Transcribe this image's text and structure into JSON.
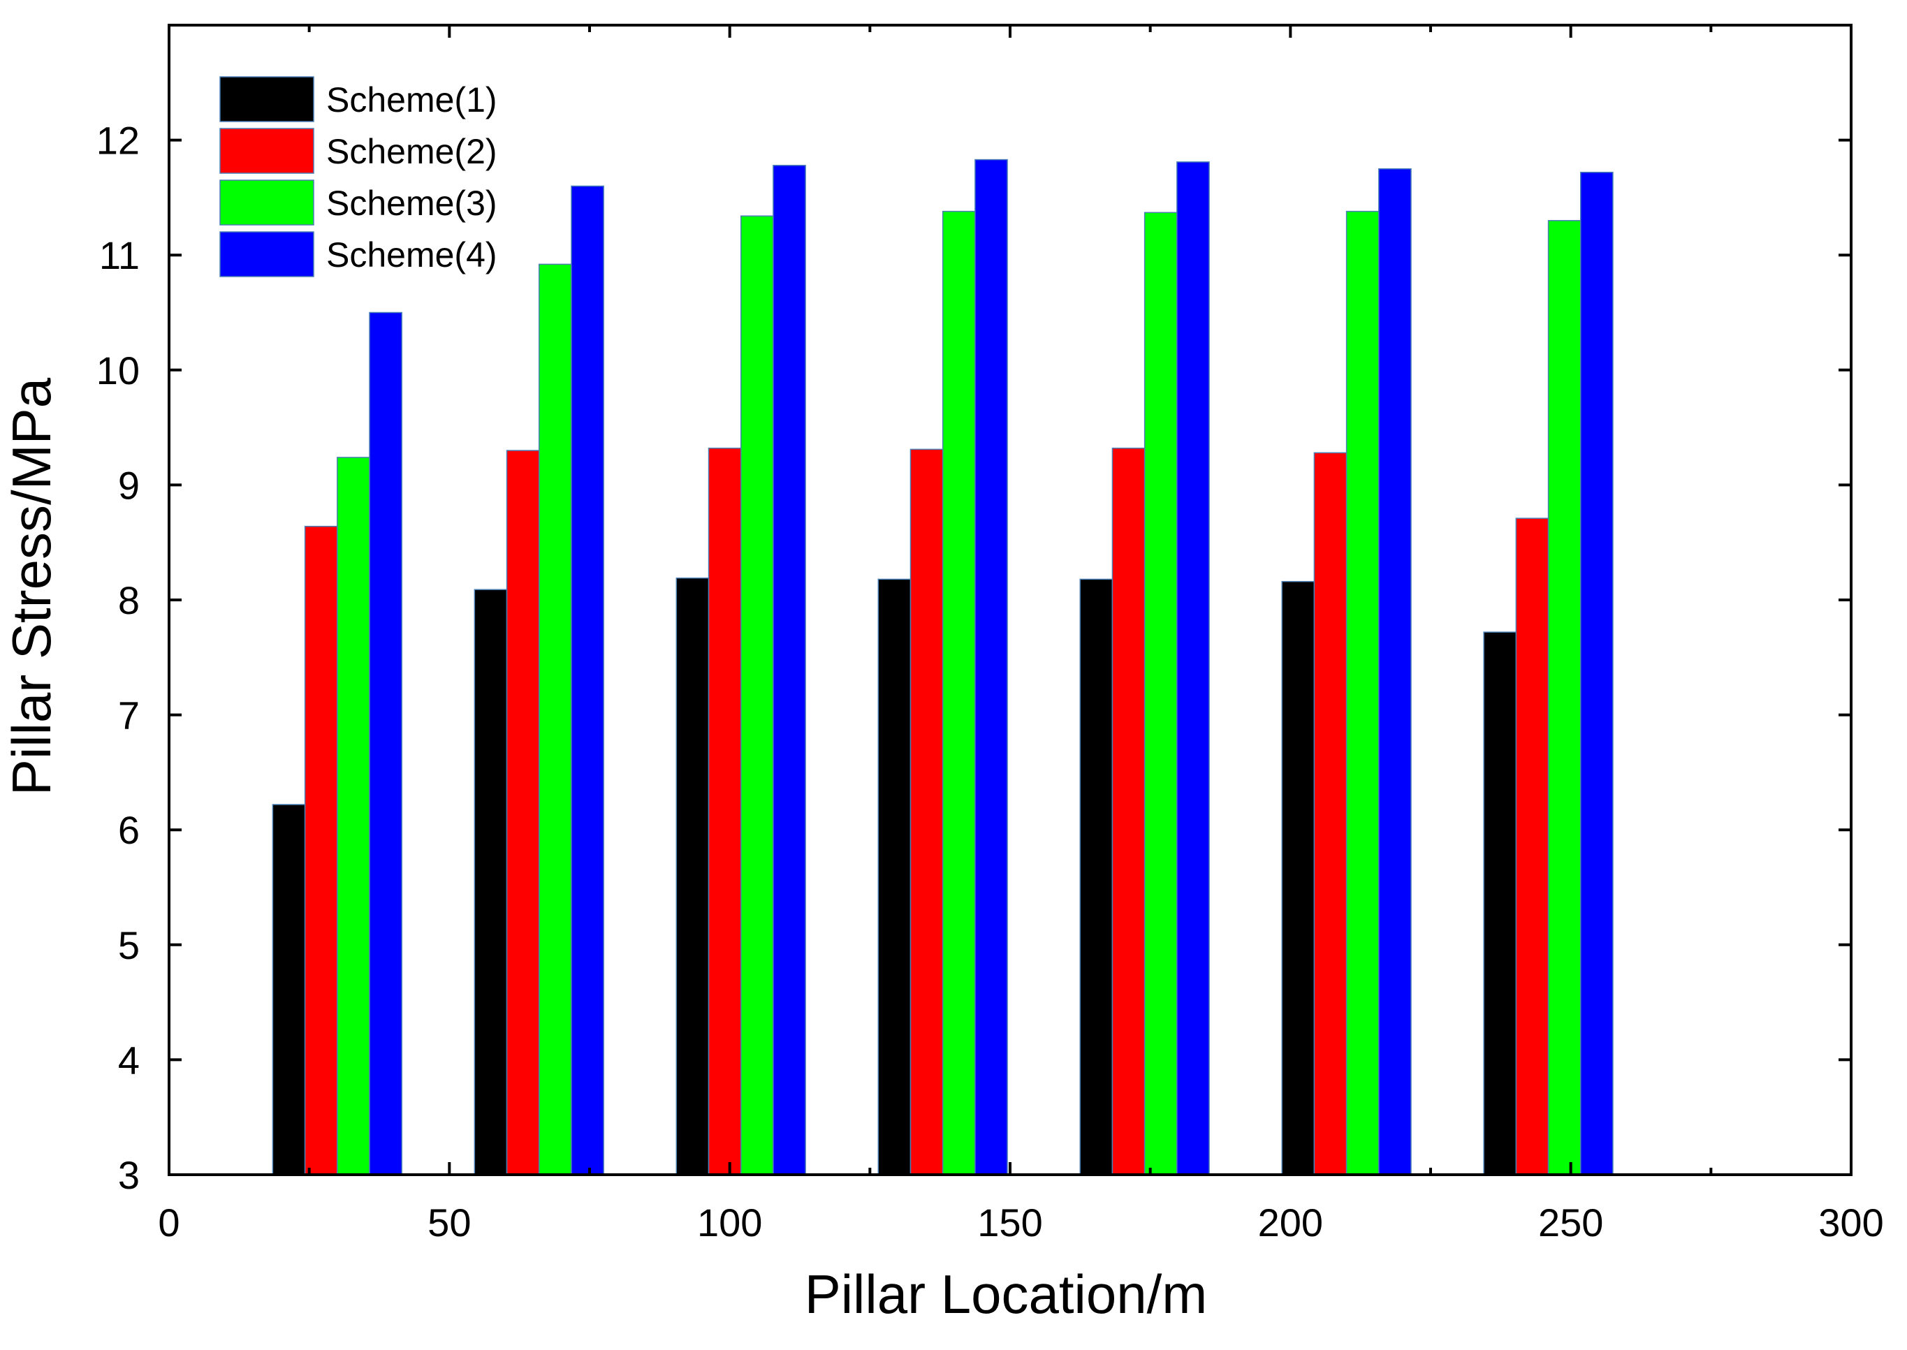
{
  "chart_data": {
    "type": "bar",
    "title": "",
    "xlabel": "Pillar Location/m",
    "ylabel": "Pillar Stress/MPa",
    "xlim": [
      0,
      300
    ],
    "ylim": [
      3,
      13
    ],
    "xticks": [
      0,
      50,
      100,
      150,
      200,
      250,
      300
    ],
    "yticks": [
      3,
      4,
      5,
      6,
      7,
      8,
      9,
      10,
      11,
      12
    ],
    "grid": false,
    "legend": "top-left",
    "x": [
      30,
      66,
      102,
      138,
      174,
      210,
      246
    ],
    "series": [
      {
        "name": "Scheme(1)",
        "color": "#000000",
        "values": [
          6.22,
          8.09,
          8.19,
          8.18,
          8.18,
          8.16,
          7.72
        ]
      },
      {
        "name": "Scheme(2)",
        "color": "#ff0000",
        "values": [
          8.64,
          9.3,
          9.32,
          9.31,
          9.32,
          9.28,
          8.71
        ]
      },
      {
        "name": "Scheme(3)",
        "color": "#00ff00",
        "values": [
          9.24,
          10.92,
          11.34,
          11.38,
          11.37,
          11.38,
          11.3
        ]
      },
      {
        "name": "Scheme(4)",
        "color": "#0000ff",
        "values": [
          10.5,
          11.6,
          11.78,
          11.83,
          11.81,
          11.75,
          11.72
        ]
      }
    ]
  }
}
